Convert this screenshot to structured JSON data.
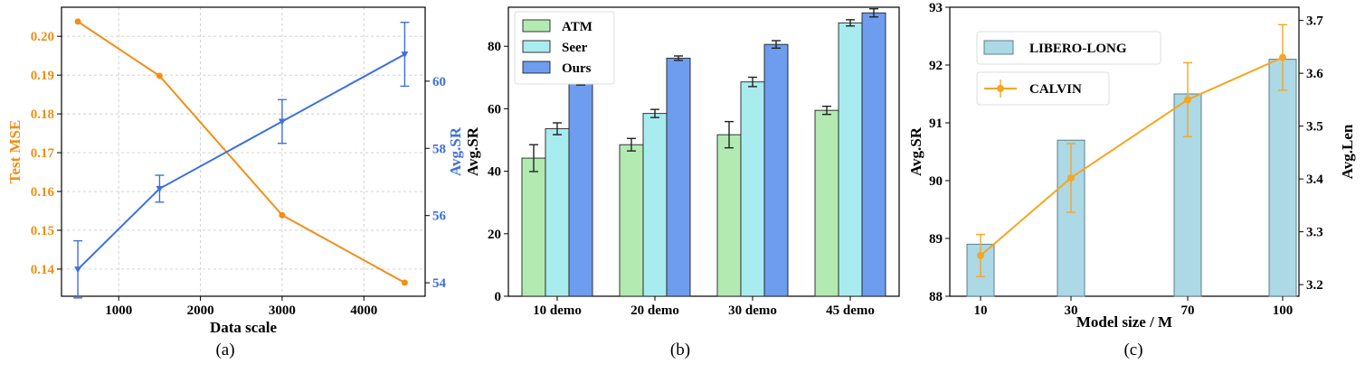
{
  "chart_data": [
    {
      "id": "a",
      "type": "line",
      "caption": "(a)",
      "xlabel": "Data scale",
      "ylabel_left": "Test MSE",
      "ylabel_right": "Avg.SR",
      "xlim": [
        300,
        4750
      ],
      "ylim_left": [
        0.133,
        0.2075
      ],
      "ylim_right": [
        53.6,
        62.2
      ],
      "xticks": [
        1000,
        2000,
        3000,
        4000
      ],
      "yticks_left": [
        0.14,
        0.15,
        0.16,
        0.17,
        0.18,
        0.19,
        0.2
      ],
      "yticks_left_labels": [
        "0.14",
        "0.15",
        "0.16",
        "0.17",
        "0.18",
        "0.19",
        "0.20"
      ],
      "yticks_right": [
        54,
        56,
        58,
        60
      ],
      "grid": true,
      "series": [
        {
          "axis": "left",
          "color": "#f28e16",
          "marker": "circle",
          "x": [
            500,
            1500,
            3000,
            4500
          ],
          "y": [
            0.2038,
            0.1898,
            0.1539,
            0.1365
          ]
        },
        {
          "axis": "right",
          "color": "#3f6fe0",
          "marker": "triangle-down",
          "x": [
            500,
            1500,
            3000,
            4500
          ],
          "y": [
            54.4,
            56.8,
            58.8,
            60.8
          ],
          "err": [
            0.85,
            0.4,
            0.65,
            0.95
          ]
        }
      ]
    },
    {
      "id": "b",
      "type": "bar",
      "caption": "(b)",
      "ylabel": "Avg.SR",
      "categories": [
        "10 demo",
        "20 demo",
        "30 demo",
        "45 demo"
      ],
      "ylim": [
        0,
        92.5
      ],
      "yticks": [
        0,
        20,
        40,
        60,
        80
      ],
      "legend_position": "top-left",
      "series": [
        {
          "name": "ATM",
          "color": "#b2eab2",
          "values": [
            44.2,
            48.5,
            51.7,
            59.5
          ],
          "err": [
            4.3,
            2.0,
            4.2,
            1.3
          ]
        },
        {
          "name": "Seer",
          "color": "#a9ecef",
          "values": [
            53.6,
            58.5,
            68.6,
            87.5
          ],
          "err": [
            1.9,
            1.3,
            1.5,
            1.0
          ]
        },
        {
          "name": "Ours",
          "color": "#6e9cee",
          "values": [
            68.7,
            76.2,
            80.6,
            90.7
          ],
          "err": [
            1.1,
            0.7,
            1.2,
            1.3
          ]
        }
      ]
    },
    {
      "id": "c",
      "type": "bar",
      "caption": "(c)",
      "xlabel": "Model size / M",
      "ylabel_left": "Avg.SR",
      "ylabel_right": "Avg.Len",
      "categories": [
        "10",
        "30",
        "70",
        "100"
      ],
      "ylim_left": [
        88,
        93
      ],
      "ylim_right": [
        3.178,
        3.725
      ],
      "yticks_left": [
        88,
        89,
        90,
        91,
        92,
        93
      ],
      "yticks_right": [
        3.2,
        3.3,
        3.4,
        3.5,
        3.6,
        3.7
      ],
      "yticks_right_labels": [
        "3.2",
        "3.3",
        "3.4",
        "3.5",
        "3.6",
        "3.7"
      ],
      "series": [
        {
          "name": "LIBERO-LONG",
          "type": "bar",
          "axis": "left",
          "color": "#add8e6",
          "values": [
            88.9,
            90.7,
            91.5,
            92.1
          ]
        },
        {
          "name": "CALVIN",
          "type": "line",
          "axis": "right",
          "color": "#f5a623",
          "marker": "circle",
          "values": [
            3.255,
            3.402,
            3.55,
            3.63
          ],
          "err": [
            0.04,
            0.065,
            0.07,
            0.062
          ]
        }
      ]
    }
  ]
}
